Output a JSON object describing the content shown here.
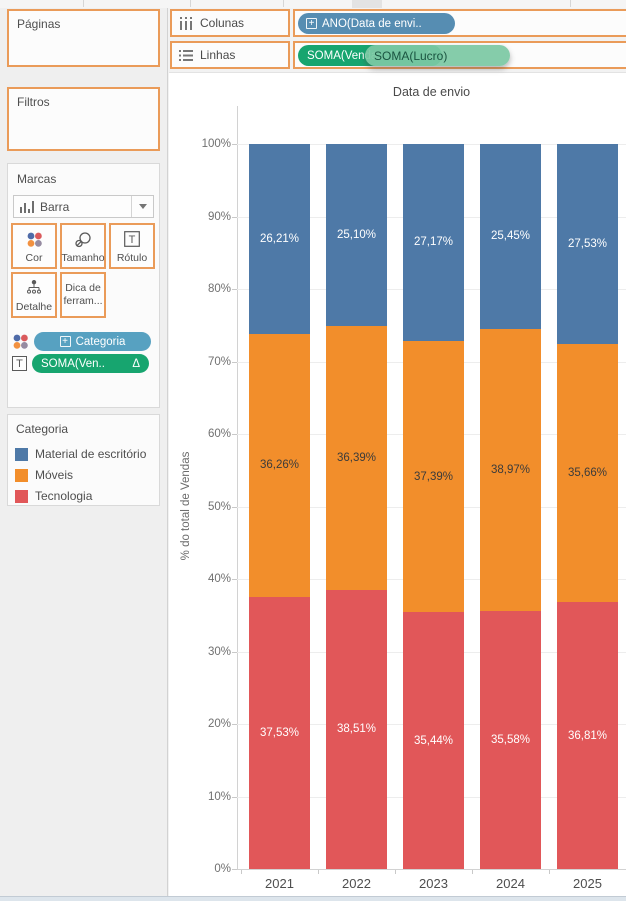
{
  "shelves": {
    "pages": {
      "label": "Páginas"
    },
    "filters": {
      "label": "Filtros"
    },
    "columns": {
      "label": "Colunas",
      "pills": [
        {
          "text": "ANO(Data de envi..",
          "has_expand": true,
          "color": "#568db2"
        }
      ]
    },
    "rows": {
      "label": "Linhas",
      "pills": [
        {
          "text": "SOMA(Venda..",
          "delta": "Δ",
          "color": "#17a56f"
        }
      ]
    },
    "drag_pill": {
      "text": "SOMA(Lucro)",
      "color": "#7cc8a4",
      "text_color": "#1a5440"
    }
  },
  "marks": {
    "title": "Marcas",
    "type_selector": {
      "value": "Barra"
    },
    "buttons": [
      {
        "label": "Cor",
        "icon": "color-dots"
      },
      {
        "label": "Tamanho",
        "icon": "size-circles"
      },
      {
        "label": "Rótulo",
        "icon": "text-box"
      },
      {
        "label": "Detalhe",
        "icon": "detail-tree"
      },
      {
        "label": "Dica de ferram...",
        "icon": "none"
      }
    ],
    "pills": [
      {
        "icon": "color-dots",
        "text": "Categoria",
        "has_expand": true,
        "color": "#57a1c1"
      },
      {
        "icon": "text-box",
        "text": "SOMA(Ven..",
        "delta": "Δ",
        "color": "#17a56f"
      }
    ]
  },
  "legend": {
    "title": "Categoria",
    "items": [
      {
        "label": "Material de escritório",
        "color": "#4e79a7"
      },
      {
        "label": "Móveis",
        "color": "#f28e2b"
      },
      {
        "label": "Tecnologia",
        "color": "#e15759"
      }
    ]
  },
  "chart_data": {
    "type": "bar",
    "stacked": "100%",
    "title": "Data de envio",
    "xlabel": "",
    "ylabel": "% do total de Vendas",
    "categories": [
      "2021",
      "2022",
      "2023",
      "2024",
      "2025"
    ],
    "series": [
      {
        "name": "Tecnologia",
        "color": "#e15759",
        "label_color": "#ffffff",
        "values": [
          37.53,
          38.51,
          35.44,
          35.58,
          36.81
        ]
      },
      {
        "name": "Móveis",
        "color": "#f28e2b",
        "label_color": "#3b3b3b",
        "values": [
          36.26,
          36.39,
          37.39,
          38.97,
          35.66
        ]
      },
      {
        "name": "Material de escritório",
        "color": "#4e79a7",
        "label_color": "#ffffff",
        "values": [
          26.21,
          25.1,
          27.17,
          25.45,
          27.53
        ]
      }
    ],
    "stack_order_bottom_to_top": [
      "Tecnologia",
      "Móveis",
      "Material de escritório"
    ],
    "ylim": [
      0,
      100
    ],
    "y_ticks": [
      "0%",
      "10%",
      "20%",
      "30%",
      "40%",
      "50%",
      "60%",
      "70%",
      "80%",
      "90%",
      "100%"
    ],
    "grid": true,
    "legend_position": "left",
    "value_format": "two decimals, comma separator, percent suffix"
  },
  "colors": {
    "drop_highlight_border": "#ea9b59",
    "dimension_pill": "#568db2",
    "measure_pill": "#17a56f",
    "marks_color_pill": "#57a1c1"
  }
}
